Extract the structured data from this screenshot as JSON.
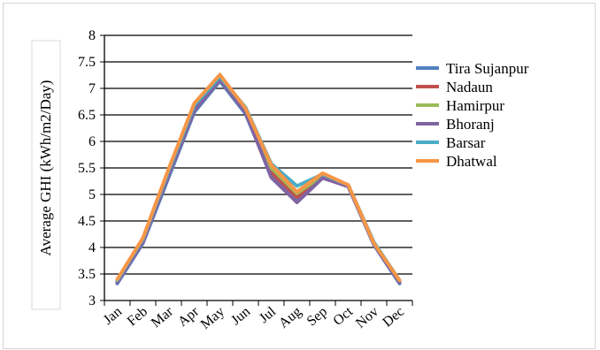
{
  "chart_data": {
    "type": "line",
    "title": "",
    "xlabel": "",
    "ylabel": "Average GHI (kWh/m2/Day)",
    "ylim": [
      3,
      8
    ],
    "yticks": [
      "3",
      "3.5",
      "4",
      "4.5",
      "5",
      "5.5",
      "6",
      "6.5",
      "7",
      "7.5",
      "8"
    ],
    "categories": [
      "Jan",
      "Feb",
      "Mar",
      "Apr",
      "May",
      "Jun",
      "Jul",
      "Aug",
      "Sep",
      "Oct",
      "Nov",
      "Dec"
    ],
    "grid": "horizontal",
    "legend_position": "right",
    "series": [
      {
        "name": "Tira Sujanpur",
        "color": "#4f81bd",
        "values": [
          3.32,
          4.08,
          5.32,
          6.55,
          7.14,
          6.52,
          5.35,
          4.9,
          5.32,
          5.15,
          4.05,
          3.32
        ]
      },
      {
        "name": "Nadaun",
        "color": "#c0504d",
        "values": [
          3.35,
          4.12,
          5.38,
          6.62,
          7.18,
          6.58,
          5.42,
          4.95,
          5.33,
          5.16,
          4.08,
          3.35
        ]
      },
      {
        "name": "Hamirpur",
        "color": "#9bbb59",
        "values": [
          3.36,
          4.13,
          5.4,
          6.65,
          7.2,
          6.6,
          5.5,
          5.02,
          5.35,
          5.17,
          4.08,
          3.36
        ]
      },
      {
        "name": "Bhoranj",
        "color": "#8064a2",
        "values": [
          3.34,
          4.1,
          5.36,
          6.58,
          7.16,
          6.55,
          5.32,
          4.85,
          5.31,
          5.15,
          4.06,
          3.34
        ]
      },
      {
        "name": "Barsar",
        "color": "#4bacc6",
        "values": [
          3.38,
          4.16,
          5.44,
          6.68,
          7.22,
          6.64,
          5.58,
          5.16,
          5.38,
          5.18,
          4.1,
          3.38
        ]
      },
      {
        "name": "Dhatwal",
        "color": "#f79646",
        "values": [
          3.4,
          4.18,
          5.48,
          6.72,
          7.26,
          6.62,
          5.56,
          5.05,
          5.4,
          5.18,
          4.08,
          3.38
        ]
      }
    ]
  }
}
